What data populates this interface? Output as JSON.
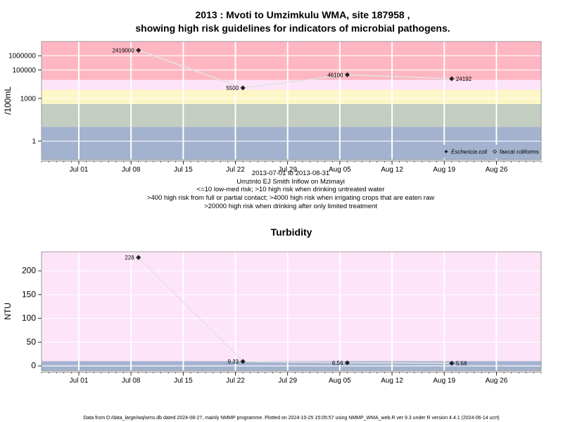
{
  "chart_data": [
    {
      "type": "line",
      "title_line1": "2013 : Mvoti to Umzimkulu WMA, site 187958 ,",
      "title_line2": "showing high risk guidelines for indicators of microbial pathogens.",
      "ylabel": "/100mL",
      "log_y": true,
      "ylim": [
        0.05,
        10000000
      ],
      "y_ticks": [
        {
          "value": 1,
          "label": "1"
        },
        {
          "value": 1000,
          "label": "1000"
        },
        {
          "value": 100000,
          "label": "100000"
        },
        {
          "value": 1000000,
          "label": "1000000"
        }
      ],
      "x_range": [
        "2013-06-26",
        "2013-09-01"
      ],
      "x_ticks": [
        {
          "date": "2013-07-01",
          "label": "Jul 01"
        },
        {
          "date": "2013-07-08",
          "label": "Jul 08"
        },
        {
          "date": "2013-07-15",
          "label": "Jul 15"
        },
        {
          "date": "2013-07-22",
          "label": "Jul 22"
        },
        {
          "date": "2013-07-29",
          "label": "Jul 29"
        },
        {
          "date": "2013-08-05",
          "label": "Aug 05"
        },
        {
          "date": "2013-08-12",
          "label": "Aug 12"
        },
        {
          "date": "2013-08-19",
          "label": "Aug 19"
        },
        {
          "date": "2013-08-26",
          "label": "Aug 26"
        }
      ],
      "bands": [
        {
          "from": 0.05,
          "to": 10,
          "color": "#a3b3cf"
        },
        {
          "from": 10,
          "to": 400,
          "color": "#c3cdc2"
        },
        {
          "from": 400,
          "to": 4000,
          "color": "#fdf6c6"
        },
        {
          "from": 4000,
          "to": 20000,
          "color": "#fde4f8"
        },
        {
          "from": 20000,
          "to": 10000000,
          "color": "#ffb6c3"
        }
      ],
      "series": [
        {
          "name": "Eschericia coli",
          "points": [
            {
              "date": "2013-07-09",
              "value": 2419000,
              "label": "2419000",
              "label_side": "left"
            },
            {
              "date": "2013-07-23",
              "value": 5500,
              "label": "5500",
              "label_side": "left"
            },
            {
              "date": "2013-08-06",
              "value": 46100,
              "label": "46100",
              "label_side": "left"
            },
            {
              "date": "2013-08-20",
              "value": 24192,
              "label": "24192",
              "label_side": "right"
            }
          ]
        }
      ],
      "legend": {
        "position": "bottom-right",
        "items": [
          "Eschericia coli",
          "faecal coliforms"
        ]
      },
      "caption": [
        "2013-07-01 to 2013-08-31",
        "Umzinto EJ Smith Inflow on Mzimayi",
        "<=10 low-med risk; >10 high risk when drinking untreated water",
        ">400 high risk from full or partial contact; >4000 high risk when irrigating crops that are eaten raw",
        ">20000 high risk when drinking after only limited treatment"
      ]
    },
    {
      "type": "line",
      "title": "Turbidity",
      "ylabel": "NTU",
      "log_y": false,
      "ylim": [
        -10,
        240
      ],
      "y_ticks": [
        {
          "value": 0,
          "label": "0"
        },
        {
          "value": 50,
          "label": "50"
        },
        {
          "value": 100,
          "label": "100"
        },
        {
          "value": 150,
          "label": "150"
        },
        {
          "value": 200,
          "label": "200"
        }
      ],
      "x_range": [
        "2013-06-26",
        "2013-09-01"
      ],
      "bands": [
        {
          "from": -10,
          "to": 10,
          "color": "#a3b3cf"
        },
        {
          "from": 10,
          "to": 240,
          "color": "#fde4f8"
        }
      ],
      "series": [
        {
          "name": "Turbidity",
          "points": [
            {
              "date": "2013-07-09",
              "value": 228,
              "label": "228",
              "label_side": "left"
            },
            {
              "date": "2013-07-23",
              "value": 9.33,
              "label": "9.33",
              "label_side": "left"
            },
            {
              "date": "2013-08-06",
              "value": 6.56,
              "label": "6.56",
              "label_side": "left"
            },
            {
              "date": "2013-08-20",
              "value": 5.58,
              "label": "5.58",
              "label_side": "right"
            }
          ]
        }
      ]
    }
  ],
  "footer": "Data from D:/data_large/wq/wms.db dated 2024-08-27, mainly NMMP programme. Plotted on 2024-10-25 15:05:57 using NMMP_WMA_web.R ver 9.3 under R version 4.4.1 (2024-06-14 ucrt)"
}
